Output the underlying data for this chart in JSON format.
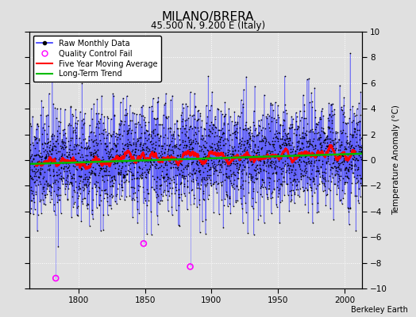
{
  "title": "MILANO/BRERA",
  "subtitle": "45.500 N, 9.200 E (Italy)",
  "ylabel": "Temperature Anomaly (°C)",
  "credit": "Berkeley Earth",
  "xlim": [
    1763,
    2013
  ],
  "ylim": [
    -10,
    10
  ],
  "yticks": [
    -10,
    -8,
    -6,
    -4,
    -2,
    0,
    2,
    4,
    6,
    8,
    10
  ],
  "xticks": [
    1800,
    1850,
    1900,
    1950,
    2000
  ],
  "seed": 42,
  "start_year": 1763,
  "end_year": 2013,
  "noise_std": 2.0,
  "qc_years": [
    1783,
    1849,
    1884
  ],
  "qc_values": [
    -9.2,
    -6.5,
    -8.3
  ],
  "bg_color": "#e0e0e0",
  "plot_bg_color": "#dcdcdc",
  "line_color": "#3333ff",
  "stem_color": "#8888ff",
  "dot_color": "#000000",
  "ma_color": "#ff0000",
  "trend_color": "#00bb00",
  "qc_color": "#ff00ff",
  "title_fontsize": 11,
  "subtitle_fontsize": 8.5,
  "label_fontsize": 7.5,
  "tick_fontsize": 7.5,
  "credit_fontsize": 7,
  "legend_fontsize": 7
}
